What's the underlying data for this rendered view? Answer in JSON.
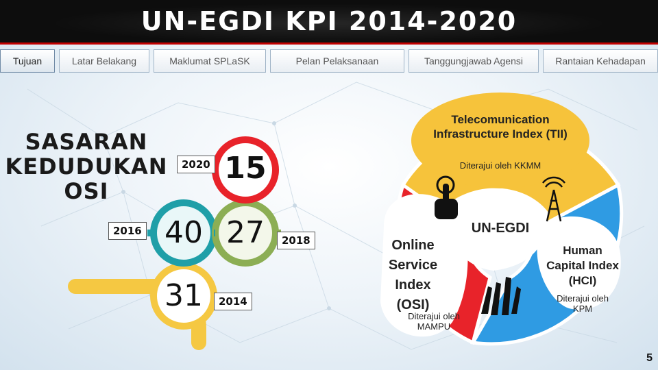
{
  "header": {
    "title": "UN-EGDI KPI 2014-2020"
  },
  "tabs": [
    {
      "label": "Tujuan"
    },
    {
      "label": "Latar Belakang"
    },
    {
      "label": "Maklumat SPLaSK"
    },
    {
      "label": "Pelan Pelaksanaan"
    },
    {
      "label": "Tanggungjawab Agensi"
    },
    {
      "label": "Rantaian Kehadapan"
    }
  ],
  "target": {
    "headline": "SASARAN KEDUDUKAN OSI",
    "milestones": [
      {
        "year": "2014",
        "rank": "31"
      },
      {
        "year": "2016",
        "rank": "40"
      },
      {
        "year": "2018",
        "rank": "27"
      },
      {
        "year": "2020",
        "rank": "15"
      }
    ]
  },
  "venn": {
    "center_label": "UN-EGDI",
    "tii": {
      "title": "Telecomunication Infrastructure Index (TII)",
      "owner": "Diterajui oleh KKMM"
    },
    "osi": {
      "title": "Online Service Index (OSI)",
      "owner": "Diterajui oleh MAMPU"
    },
    "hci": {
      "title": "Human Capital Index (HCI)",
      "owner": "Diterajui oleh KPM"
    }
  },
  "colors": {
    "title_bar": "#0d0d0d",
    "accent_red": "#c00000",
    "yellow": "#f5c842",
    "green": "#8cae54",
    "teal": "#1f9fa8",
    "red": "#e8232a",
    "blue": "#2f9be3"
  },
  "icons": [
    "touch-hand-icon",
    "radio-tower-icon",
    "raised-hands-icon"
  ],
  "page_number": "5"
}
